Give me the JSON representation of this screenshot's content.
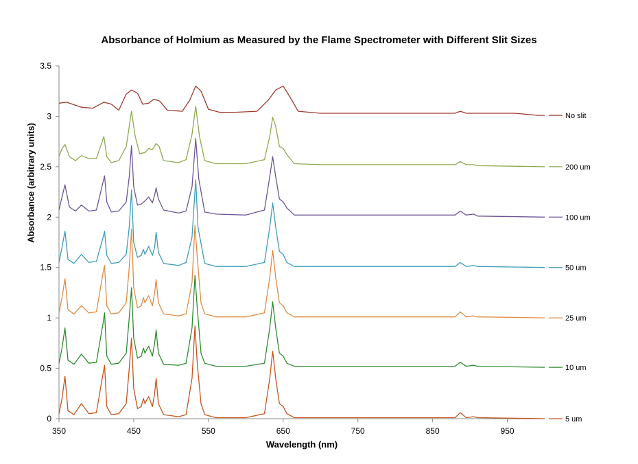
{
  "chart_data": {
    "type": "line",
    "title": "Absorbance of Holmium as Measured by the Flame Spectrometer with Different Slit Sizes",
    "xlabel": "Wavelength (nm)",
    "ylabel": "Absorbance (arbitrary units)",
    "xlim": [
      350,
      1000
    ],
    "ylim": [
      0,
      3.5
    ],
    "x_ticks": [
      350,
      450,
      550,
      650,
      750,
      850,
      950
    ],
    "x_tick_labels": [
      "350",
      "450",
      "550",
      "650",
      "750",
      "850",
      "950"
    ],
    "y_ticks": [
      0,
      0.5,
      1,
      1.5,
      2,
      2.5,
      3,
      3.5
    ],
    "y_tick_labels": [
      "0",
      "0.5",
      "1",
      "1.5",
      "2",
      "2.5",
      "3",
      "3.5"
    ],
    "grid": false,
    "legend": "right, labels at the end of each series",
    "series": [
      {
        "name": "No slit",
        "color": "#A0392F",
        "x": [
          350,
          360,
          380,
          395,
          410,
          420,
          430,
          440,
          447,
          455,
          462,
          470,
          477,
          485,
          495,
          515,
          525,
          533,
          540,
          550,
          565,
          585,
          615,
          630,
          640,
          650,
          660,
          670,
          700,
          800,
          880,
          887,
          895,
          960,
          990,
          1000
        ],
        "y": [
          3.13,
          3.14,
          3.09,
          3.08,
          3.14,
          3.12,
          3.06,
          3.22,
          3.26,
          3.23,
          3.12,
          3.13,
          3.17,
          3.15,
          3.06,
          3.05,
          3.16,
          3.3,
          3.25,
          3.07,
          3.04,
          3.04,
          3.05,
          3.16,
          3.26,
          3.3,
          3.18,
          3.05,
          3.03,
          3.03,
          3.03,
          3.05,
          3.03,
          3.03,
          3.01,
          3.01
        ]
      },
      {
        "name": "200 um",
        "color": "#8EA84E",
        "x": [
          350,
          354,
          358,
          364,
          372,
          380,
          390,
          400,
          410,
          414,
          420,
          430,
          440,
          447,
          452,
          458,
          465,
          470,
          475,
          480,
          484,
          490,
          510,
          520,
          528,
          533,
          538,
          545,
          560,
          600,
          625,
          632,
          636,
          640,
          645,
          650,
          655,
          665,
          700,
          800,
          880,
          887,
          895,
          905,
          910,
          1000
        ],
        "y": [
          2.6,
          2.68,
          2.72,
          2.6,
          2.56,
          2.61,
          2.58,
          2.58,
          2.8,
          2.6,
          2.54,
          2.56,
          2.7,
          3.05,
          2.8,
          2.63,
          2.64,
          2.68,
          2.67,
          2.73,
          2.7,
          2.56,
          2.54,
          2.57,
          2.82,
          3.1,
          2.8,
          2.56,
          2.53,
          2.53,
          2.57,
          2.8,
          2.99,
          2.9,
          2.7,
          2.68,
          2.62,
          2.53,
          2.52,
          2.52,
          2.52,
          2.55,
          2.52,
          2.52,
          2.51,
          2.5
        ]
      },
      {
        "name": "100 um",
        "color": "#6B5498",
        "x": [
          350,
          354,
          358,
          364,
          372,
          380,
          390,
          400,
          409,
          411,
          414,
          420,
          430,
          440,
          444,
          447,
          450,
          455,
          460,
          465,
          470,
          475,
          478,
          480,
          483,
          490,
          510,
          520,
          528,
          533,
          537,
          545,
          560,
          600,
          625,
          632,
          636,
          640,
          645,
          650,
          655,
          665,
          700,
          800,
          880,
          887,
          895,
          905,
          910,
          1000
        ],
        "y": [
          2.07,
          2.2,
          2.32,
          2.1,
          2.06,
          2.12,
          2.06,
          2.07,
          2.35,
          2.41,
          2.15,
          2.05,
          2.06,
          2.15,
          2.4,
          2.71,
          2.3,
          2.12,
          2.13,
          2.16,
          2.2,
          2.14,
          2.22,
          2.29,
          2.18,
          2.07,
          2.04,
          2.06,
          2.3,
          2.78,
          2.38,
          2.05,
          2.03,
          2.02,
          2.07,
          2.4,
          2.6,
          2.4,
          2.18,
          2.15,
          2.09,
          2.02,
          2.02,
          2.02,
          2.02,
          2.06,
          2.02,
          2.03,
          2.01,
          2.0
        ]
      },
      {
        "name": "50 um",
        "color": "#3D9DB8",
        "x": [
          350,
          354,
          358,
          362,
          370,
          380,
          390,
          400,
          409,
          411,
          414,
          420,
          430,
          440,
          444,
          447,
          450,
          455,
          460,
          463,
          465,
          467,
          470,
          475,
          478,
          480,
          483,
          490,
          510,
          520,
          528,
          533,
          536,
          545,
          560,
          600,
          625,
          632,
          636,
          640,
          645,
          650,
          655,
          665,
          700,
          800,
          880,
          887,
          895,
          905,
          910,
          1000
        ],
        "y": [
          1.55,
          1.7,
          1.86,
          1.58,
          1.54,
          1.63,
          1.55,
          1.56,
          1.8,
          1.86,
          1.62,
          1.54,
          1.55,
          1.63,
          1.9,
          2.27,
          1.75,
          1.6,
          1.62,
          1.68,
          1.63,
          1.66,
          1.71,
          1.62,
          1.7,
          1.85,
          1.65,
          1.54,
          1.52,
          1.55,
          1.8,
          2.37,
          1.9,
          1.54,
          1.51,
          1.51,
          1.55,
          1.9,
          2.14,
          1.9,
          1.66,
          1.63,
          1.55,
          1.51,
          1.51,
          1.51,
          1.51,
          1.55,
          1.51,
          1.52,
          1.51,
          1.5
        ]
      },
      {
        "name": "25 um",
        "color": "#E08C43",
        "x": [
          350,
          354,
          358,
          362,
          370,
          380,
          390,
          400,
          409,
          411,
          414,
          420,
          430,
          440,
          444,
          447,
          450,
          455,
          460,
          463,
          465,
          467,
          470,
          475,
          478,
          480,
          483,
          490,
          510,
          520,
          528,
          532,
          535,
          540,
          545,
          560,
          600,
          625,
          632,
          636,
          640,
          645,
          650,
          655,
          665,
          700,
          800,
          880,
          887,
          895,
          905,
          910,
          1000
        ],
        "y": [
          1.05,
          1.2,
          1.39,
          1.08,
          1.04,
          1.12,
          1.05,
          1.06,
          1.45,
          1.52,
          1.12,
          1.04,
          1.05,
          1.15,
          1.5,
          1.88,
          1.3,
          1.1,
          1.12,
          1.2,
          1.15,
          1.18,
          1.22,
          1.12,
          1.25,
          1.38,
          1.15,
          1.04,
          1.02,
          1.04,
          1.35,
          1.92,
          1.6,
          1.15,
          1.04,
          1.01,
          1.01,
          1.05,
          1.4,
          1.67,
          1.4,
          1.15,
          1.12,
          1.05,
          1.01,
          1.01,
          1.01,
          1.01,
          1.06,
          1.01,
          1.02,
          1.01,
          1.0
        ]
      },
      {
        "name": "10 um",
        "color": "#2E8B2E",
        "x": [
          350,
          354,
          358,
          362,
          370,
          380,
          390,
          400,
          409,
          411,
          414,
          420,
          430,
          440,
          444,
          447,
          450,
          455,
          460,
          463,
          465,
          467,
          470,
          475,
          478,
          480,
          483,
          490,
          510,
          520,
          528,
          532,
          535,
          540,
          545,
          560,
          600,
          625,
          632,
          636,
          640,
          645,
          650,
          655,
          665,
          700,
          800,
          880,
          887,
          895,
          905,
          910,
          1000
        ],
        "y": [
          0.55,
          0.7,
          0.9,
          0.58,
          0.54,
          0.64,
          0.55,
          0.56,
          0.95,
          1.05,
          0.62,
          0.54,
          0.55,
          0.65,
          1.0,
          1.3,
          0.8,
          0.6,
          0.62,
          0.7,
          0.65,
          0.68,
          0.72,
          0.62,
          0.75,
          0.88,
          0.65,
          0.54,
          0.53,
          0.55,
          0.9,
          1.42,
          1.1,
          0.65,
          0.55,
          0.52,
          0.52,
          0.55,
          0.9,
          1.16,
          0.9,
          0.65,
          0.62,
          0.55,
          0.52,
          0.52,
          0.52,
          0.52,
          0.56,
          0.52,
          0.53,
          0.52,
          0.51
        ]
      },
      {
        "name": "5 um",
        "color": "#C8531C",
        "x": [
          350,
          354,
          358,
          362,
          370,
          380,
          390,
          400,
          409,
          411,
          414,
          420,
          430,
          440,
          444,
          447,
          450,
          455,
          460,
          463,
          465,
          467,
          470,
          475,
          478,
          480,
          483,
          490,
          510,
          520,
          528,
          532,
          535,
          540,
          545,
          560,
          600,
          625,
          632,
          636,
          640,
          645,
          650,
          655,
          665,
          700,
          800,
          880,
          887,
          895,
          905,
          910,
          1000
        ],
        "y": [
          0.05,
          0.2,
          0.42,
          0.08,
          0.04,
          0.15,
          0.05,
          0.06,
          0.45,
          0.53,
          0.12,
          0.04,
          0.05,
          0.15,
          0.5,
          0.8,
          0.3,
          0.1,
          0.12,
          0.2,
          0.15,
          0.18,
          0.22,
          0.12,
          0.25,
          0.4,
          0.15,
          0.04,
          0.02,
          0.04,
          0.4,
          0.92,
          0.55,
          0.15,
          0.04,
          0.01,
          0.01,
          0.05,
          0.4,
          0.67,
          0.4,
          0.15,
          0.12,
          0.05,
          0.01,
          0.01,
          0.01,
          0.01,
          0.06,
          0.01,
          0.02,
          0.01,
          0.0
        ]
      }
    ]
  }
}
